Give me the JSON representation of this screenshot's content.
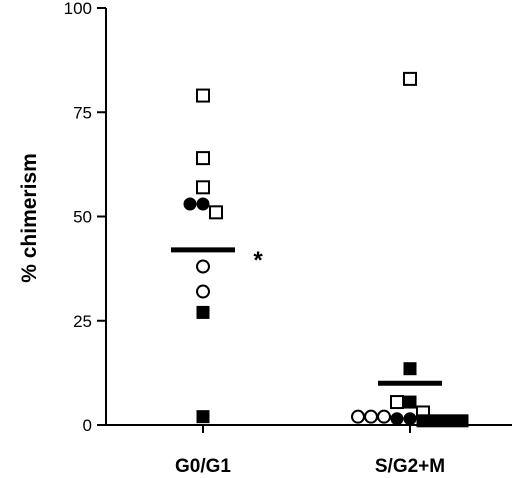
{
  "chart_data": {
    "type": "scatter",
    "ylabel": "% chimerism",
    "xlabel": "",
    "ylim": [
      0,
      100
    ],
    "yticks": [
      "0",
      "25",
      "50",
      "75",
      "100"
    ],
    "categories": [
      "G0/G1",
      "S/G2+M"
    ],
    "groups": [
      {
        "category": "G0/G1",
        "mean": 42,
        "annotation": "*",
        "points": [
          {
            "value": 79,
            "marker": "open-square"
          },
          {
            "value": 64,
            "marker": "open-square"
          },
          {
            "value": 57,
            "marker": "open-square"
          },
          {
            "value": 51,
            "marker": "open-square"
          },
          {
            "value": 53,
            "marker": "filled-circle"
          },
          {
            "value": 53,
            "marker": "filled-circle"
          },
          {
            "value": 38,
            "marker": "open-circle"
          },
          {
            "value": 32,
            "marker": "open-circle"
          },
          {
            "value": 27,
            "marker": "filled-square"
          },
          {
            "value": 2,
            "marker": "filled-square"
          }
        ]
      },
      {
        "category": "S/G2+M",
        "mean": 10,
        "annotation": "",
        "points": [
          {
            "value": 83,
            "marker": "open-square"
          },
          {
            "value": 13.5,
            "marker": "filled-square"
          },
          {
            "value": 5.5,
            "marker": "open-square"
          },
          {
            "value": 5.5,
            "marker": "filled-square"
          },
          {
            "value": 3,
            "marker": "open-square"
          },
          {
            "value": 2,
            "marker": "open-circle"
          },
          {
            "value": 2,
            "marker": "open-circle"
          },
          {
            "value": 2,
            "marker": "open-circle"
          },
          {
            "value": 1.5,
            "marker": "filled-circle"
          },
          {
            "value": 1.5,
            "marker": "filled-circle"
          },
          {
            "value": 1,
            "marker": "filled-square"
          },
          {
            "value": 1,
            "marker": "filled-square"
          },
          {
            "value": 1,
            "marker": "filled-square"
          },
          {
            "value": 1,
            "marker": "filled-square"
          }
        ]
      }
    ],
    "colors": {
      "marker": "#000000",
      "background": "#ffffff"
    }
  }
}
